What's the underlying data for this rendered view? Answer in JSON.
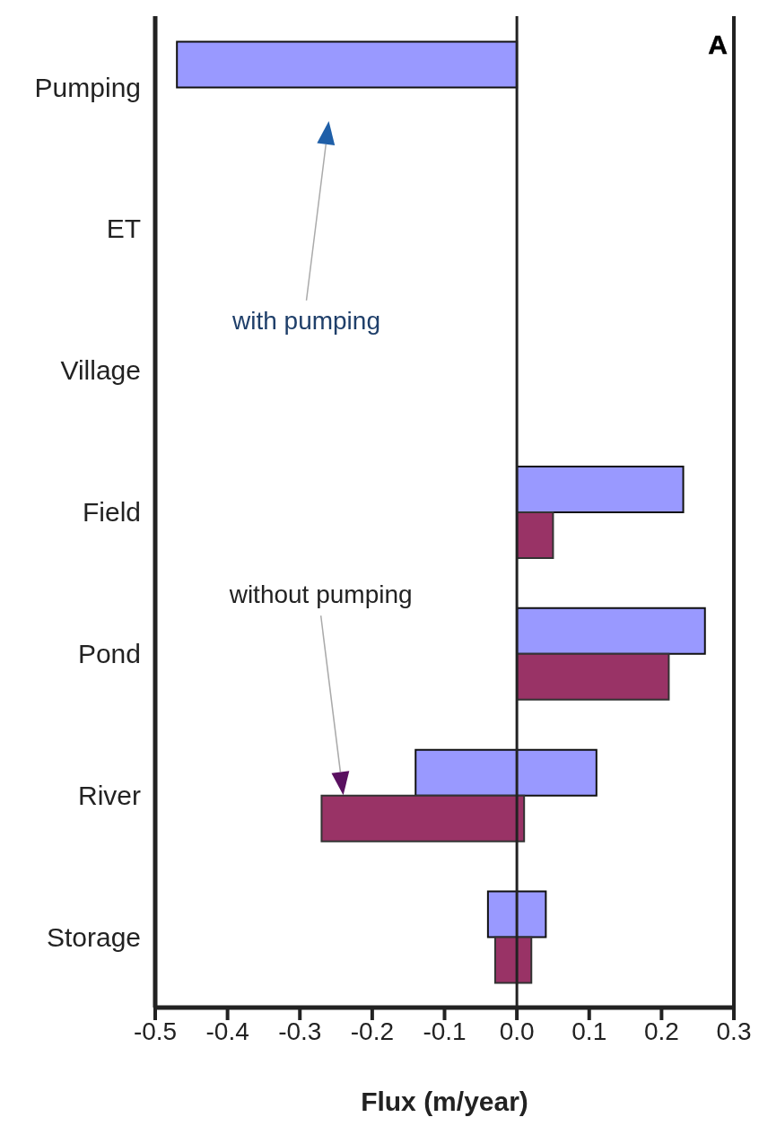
{
  "chart_data": {
    "type": "bar",
    "orientation": "horizontal",
    "xlabel": "Flux (m/year)",
    "categories": [
      "Pumping",
      "ET",
      "Village",
      "Field",
      "Pond",
      "River",
      "Storage"
    ],
    "series": [
      {
        "color": "#9999ff",
        "values": [
          -0.47,
          null,
          null,
          0.23,
          0.26,
          0.25,
          0.08
        ],
        "base": [
          0,
          null,
          null,
          0,
          0,
          -0.14,
          -0.04
        ]
      },
      {
        "color": "#993366",
        "values": [
          null,
          null,
          null,
          0.05,
          0.21,
          0.28,
          0.05
        ],
        "base": [
          null,
          null,
          null,
          0,
          0,
          -0.27,
          -0.03
        ]
      }
    ],
    "xlim": [
      -0.5,
      0.3
    ],
    "xticks": [
      {
        "value": -0.5,
        "label": "-0.5"
      },
      {
        "value": -0.4,
        "label": "-0.4"
      },
      {
        "value": -0.3,
        "label": "-0.3"
      },
      {
        "value": -0.2,
        "label": "-0.2"
      },
      {
        "value": -0.1,
        "label": "-0.1"
      },
      {
        "value": 0,
        "label": "0.0"
      },
      {
        "value": 0.1,
        "label": "0.1"
      },
      {
        "value": 0.2,
        "label": "0.2"
      },
      {
        "value": 0.3,
        "label": "0.3"
      }
    ],
    "ref_lines": [
      {
        "axis": "x",
        "value": 0
      }
    ],
    "annotations": [
      "A",
      "with pumping",
      "without pumping"
    ],
    "grid": false
  }
}
